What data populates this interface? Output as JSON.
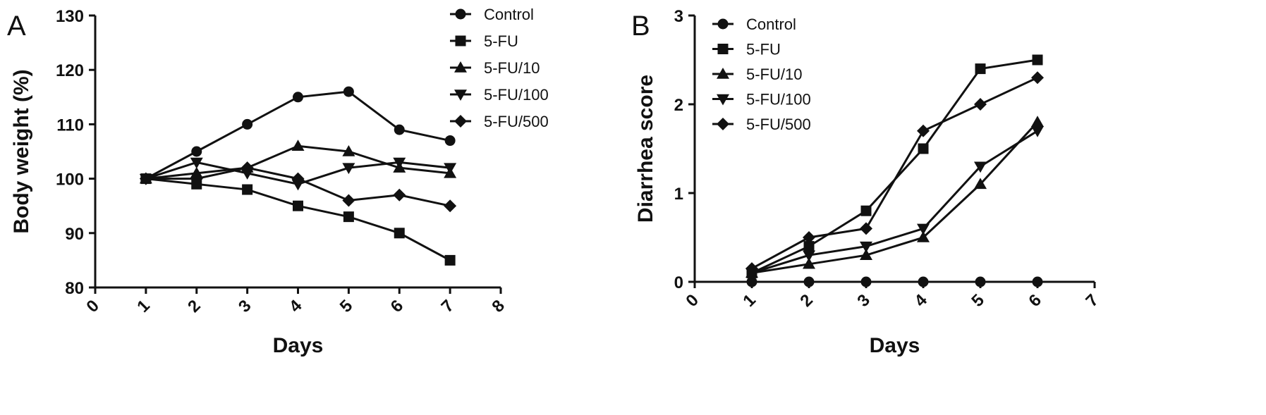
{
  "chart_data": [
    {
      "panel": "A",
      "type": "line",
      "xlabel": "Days",
      "ylabel": "Body weight (%)",
      "xlim": [
        0,
        8
      ],
      "ylim": [
        80,
        130
      ],
      "xticks": [
        "0",
        "1",
        "2",
        "3",
        "4",
        "5",
        "6",
        "7",
        "8"
      ],
      "yticks": [
        "80",
        "90",
        "100",
        "110",
        "120",
        "130"
      ],
      "legend_position": "top-right",
      "x": [
        1,
        2,
        3,
        4,
        5,
        6,
        7
      ],
      "series": [
        {
          "name": "Control",
          "marker": "circle",
          "values": [
            100,
            105,
            110,
            115,
            116,
            109,
            107
          ]
        },
        {
          "name": "5-FU",
          "marker": "square",
          "values": [
            100,
            99,
            98,
            95,
            93,
            90,
            85
          ]
        },
        {
          "name": "5-FU/10",
          "marker": "triangle",
          "values": [
            100,
            101,
            102,
            106,
            105,
            102,
            101
          ]
        },
        {
          "name": "5-FU/100",
          "marker": "triangle-down",
          "values": [
            100,
            103,
            101,
            99,
            102,
            103,
            102
          ]
        },
        {
          "name": "5-FU/500",
          "marker": "diamond",
          "values": [
            100,
            100,
            102,
            100,
            96,
            97,
            95
          ]
        }
      ]
    },
    {
      "panel": "B",
      "type": "line",
      "xlabel": "Days",
      "ylabel": "Diarrhea score",
      "xlim": [
        0,
        7
      ],
      "ylim": [
        0,
        3
      ],
      "xticks": [
        "0",
        "1",
        "2",
        "3",
        "4",
        "5",
        "6",
        "7"
      ],
      "yticks": [
        "0",
        "1",
        "2",
        "3"
      ],
      "legend_position": "top-left",
      "x": [
        1,
        2,
        3,
        4,
        5,
        6
      ],
      "series": [
        {
          "name": "Control",
          "marker": "circle",
          "values": [
            0,
            0,
            0,
            0,
            0,
            0
          ]
        },
        {
          "name": "5-FU",
          "marker": "square",
          "values": [
            0.1,
            0.4,
            0.8,
            1.5,
            2.4,
            2.5
          ]
        },
        {
          "name": "5-FU/10",
          "marker": "triangle",
          "values": [
            0.1,
            0.2,
            0.3,
            0.5,
            1.1,
            1.8
          ]
        },
        {
          "name": "5-FU/100",
          "marker": "triangle-down",
          "values": [
            0.1,
            0.3,
            0.4,
            0.6,
            1.3,
            1.7
          ]
        },
        {
          "name": "5-FU/500",
          "marker": "diamond",
          "values": [
            0.15,
            0.5,
            0.6,
            1.7,
            2.0,
            2.3
          ]
        }
      ]
    }
  ]
}
